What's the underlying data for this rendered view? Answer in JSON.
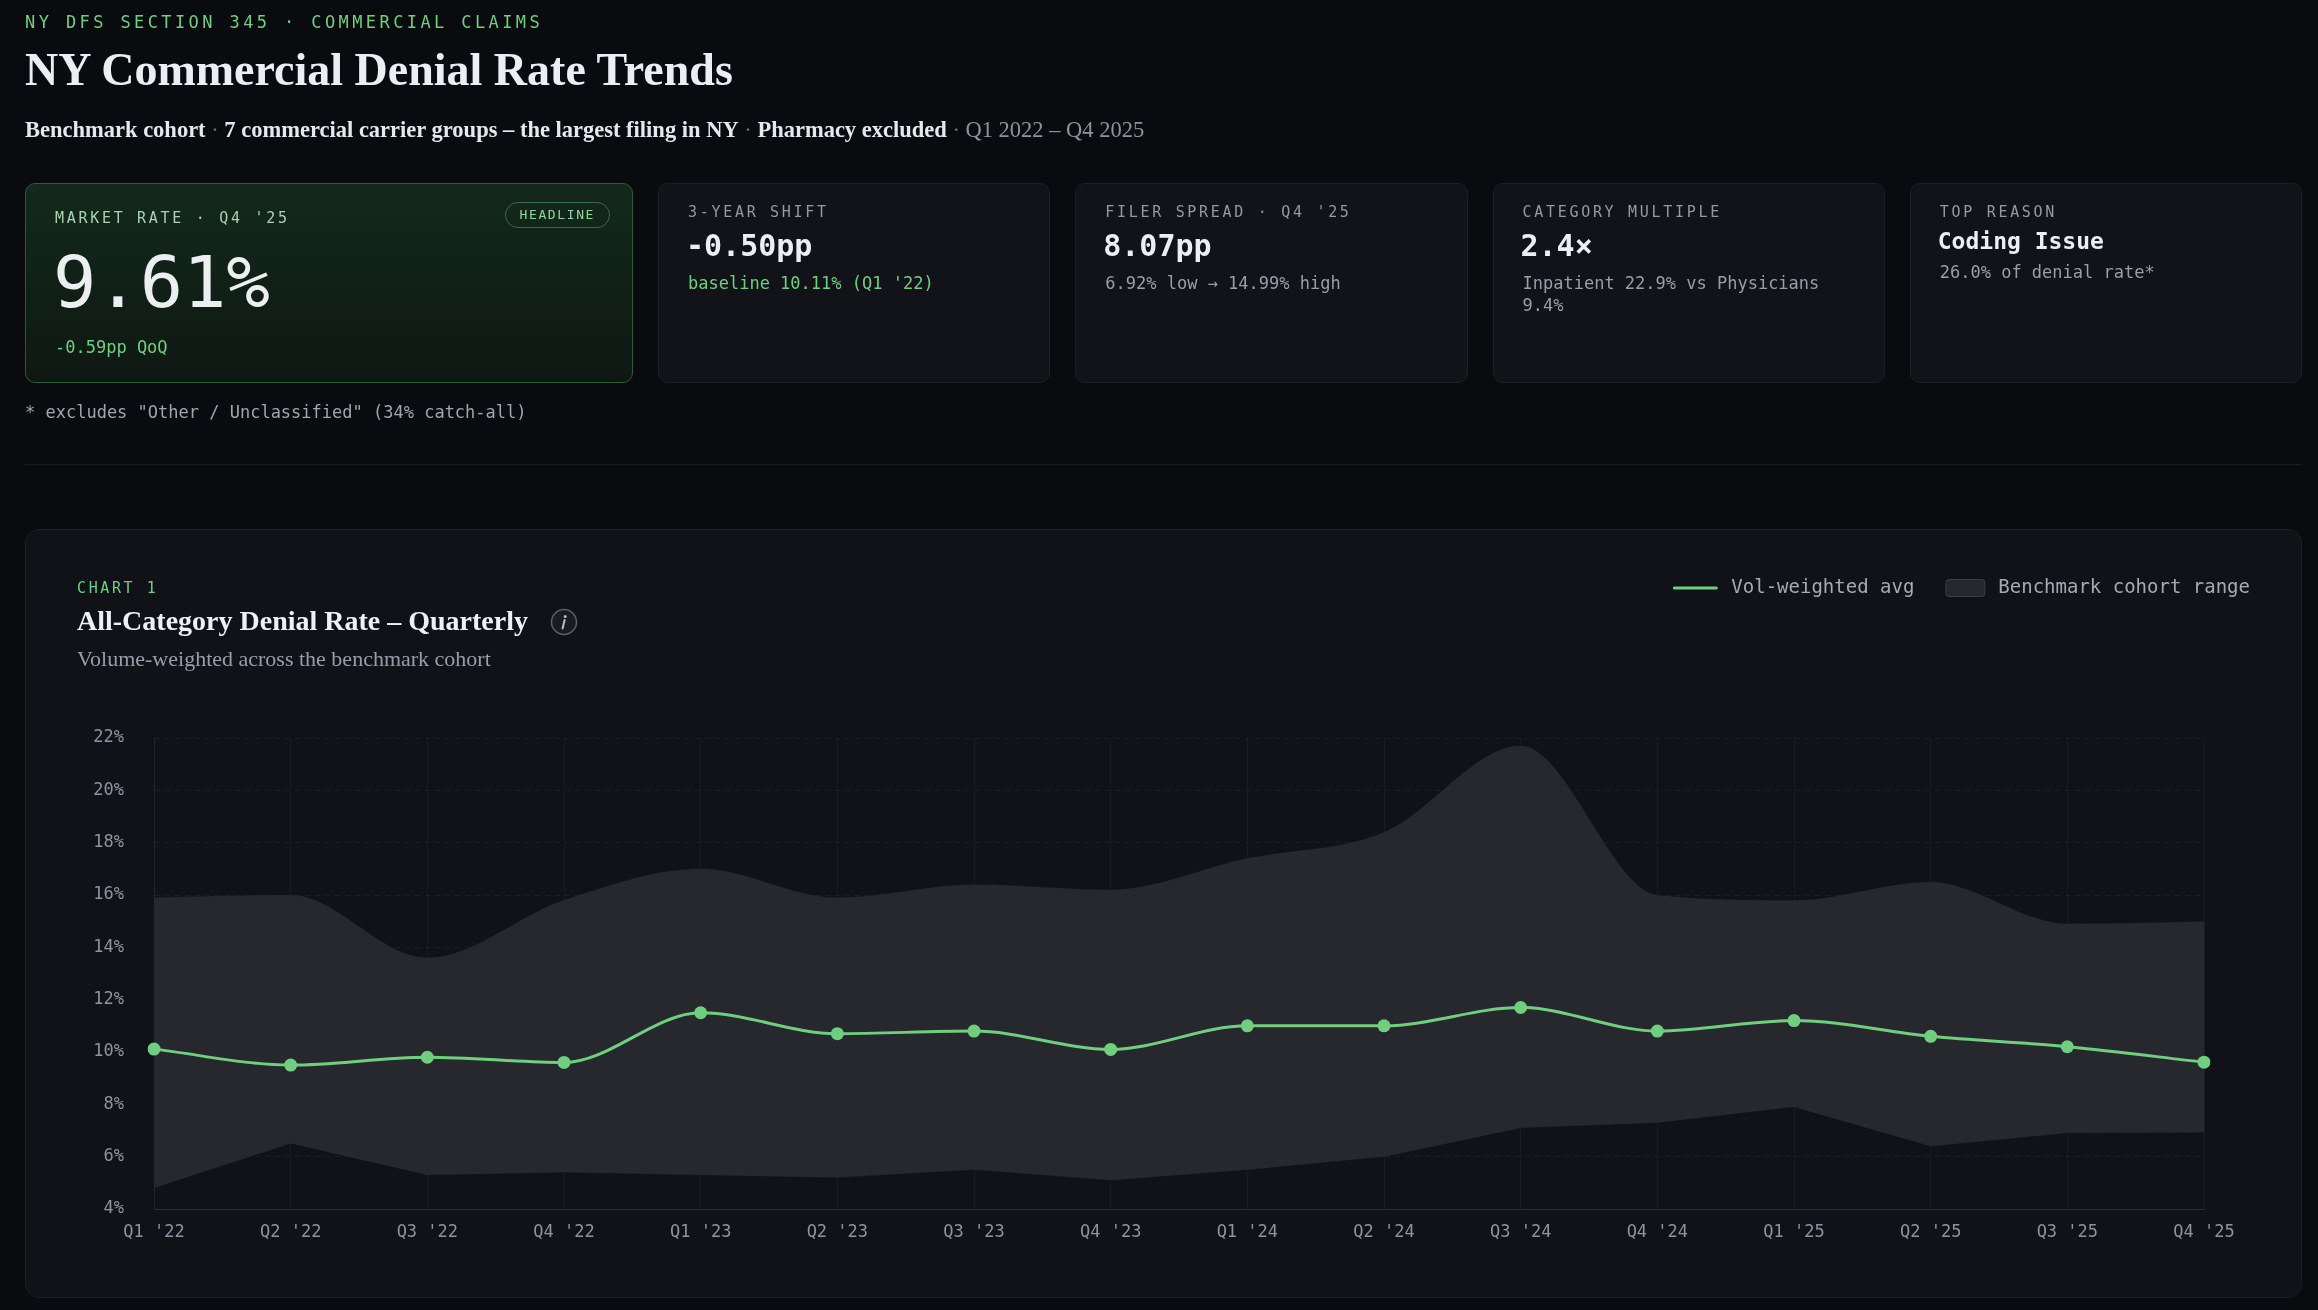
{
  "chart_data": [
    {
      "type": "other",
      "title": "NY Commercial Denial Rate Trends",
      "subtitle": "Benchmark cohort · 7 commercial carrier groups – the largest filing in NY · Pharmacy excluded · Q1 2022 – Q4 2025",
      "annotations": [
        "NY DFS SECTION 345 · COMMERCIAL CLAIMS",
        "* excludes \"Other / Unclassified\" (34% catch-all)"
      ]
    },
    {
      "type": "other",
      "title": "MARKET RATE · Q4 '25",
      "annotations": [
        "HEADLINE",
        "9.61%",
        "-0.59pp QoQ"
      ]
    },
    {
      "type": "other",
      "title": "3-YEAR SHIFT",
      "annotations": [
        "-0.50pp",
        "baseline 10.11% (Q1 '22)"
      ]
    },
    {
      "type": "other",
      "title": "FILER SPREAD · Q4 '25",
      "annotations": [
        "8.07pp",
        "6.92% low → 14.99% high"
      ]
    },
    {
      "type": "other",
      "title": "CATEGORY MULTIPLE",
      "annotations": [
        "2.4×",
        "Inpatient 22.9% vs Physicians 9.4%"
      ]
    },
    {
      "type": "other",
      "title": "TOP REASON",
      "annotations": [
        "Coding Issue",
        "26.0% of denial rate*"
      ]
    },
    {
      "type": "line",
      "title": "All-Category Denial Rate – Quarterly",
      "subtitle": "Volume-weighted across the benchmark cohort",
      "annotations": [
        "CHART 1"
      ],
      "categories": [
        "Q1 '22",
        "Q2 '22",
        "Q3 '22",
        "Q4 '22",
        "Q1 '23",
        "Q2 '23",
        "Q3 '23",
        "Q4 '23",
        "Q1 '24",
        "Q2 '24",
        "Q3 '24",
        "Q4 '24",
        "Q1 '25",
        "Q2 '25",
        "Q3 '25",
        "Q4 '25"
      ],
      "series": [
        {
          "name": "Vol-weighted avg",
          "type": "line",
          "color": "#6fcf7f",
          "marker": "circle",
          "values": [
            10.11,
            9.5,
            9.8,
            9.6,
            11.5,
            10.7,
            10.8,
            10.1,
            11.0,
            11.0,
            11.7,
            10.8,
            11.2,
            10.6,
            10.2,
            9.61
          ]
        },
        {
          "name": "Benchmark cohort range",
          "type": "area",
          "color": "#26282e",
          "values": [
            null,
            null,
            null,
            null,
            null,
            null,
            null,
            null,
            null,
            null,
            null,
            null,
            null,
            null,
            null,
            null
          ],
          "lower": [
            4.8,
            6.5,
            5.3,
            5.4,
            5.3,
            5.2,
            5.5,
            5.1,
            5.5,
            6.0,
            7.1,
            7.3,
            7.9,
            6.4,
            6.9,
            6.92
          ],
          "upper": [
            15.9,
            16.0,
            13.6,
            15.8,
            17.0,
            15.9,
            16.4,
            16.2,
            17.4,
            18.4,
            21.7,
            16.0,
            15.8,
            16.5,
            14.9,
            14.99
          ]
        }
      ],
      "ylim": [
        4,
        22
      ],
      "yticks": [
        {
          "value": 4,
          "label": "4%"
        },
        {
          "value": 6,
          "label": "6%"
        },
        {
          "value": 8,
          "label": "8%"
        },
        {
          "value": 10,
          "label": "10%"
        },
        {
          "value": 12,
          "label": "12%"
        },
        {
          "value": 14,
          "label": "14%"
        },
        {
          "value": 16,
          "label": "16%"
        },
        {
          "value": 18,
          "label": "18%"
        },
        {
          "value": 20,
          "label": "20%"
        },
        {
          "value": 22,
          "label": "22%"
        }
      ],
      "grid": true,
      "legend": "top right"
    }
  ]
}
